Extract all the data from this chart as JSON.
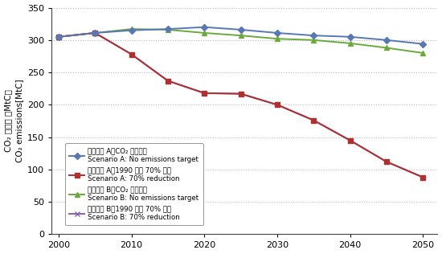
{
  "x": [
    2000,
    2005,
    2010,
    2015,
    2020,
    2025,
    2030,
    2035,
    2040,
    2045,
    2050
  ],
  "scenario_A_no_target": [
    305,
    311,
    315,
    317,
    320,
    316,
    311,
    307,
    305,
    300,
    294
  ],
  "scenario_A_70pct": [
    305,
    311,
    278,
    237,
    218,
    217,
    200,
    176,
    145,
    112,
    88
  ],
  "scenario_B_no_target": [
    305,
    311,
    317,
    316,
    311,
    307,
    302,
    300,
    295,
    288,
    280
  ],
  "scenario_B_70pct": [
    305,
    311,
    278,
    237,
    218,
    217,
    200,
    176,
    145,
    112,
    88
  ],
  "colors": {
    "A_no_target": "#5878b4",
    "A_70pct": "#b03030",
    "B_no_target": "#6aaa3a",
    "B_70pct": "#8860b8"
  },
  "markers": {
    "A_no_target": "D",
    "A_70pct": "s",
    "B_no_target": "^",
    "B_70pct": "x"
  },
  "legend_labels_jp": [
    "シナリオ A：CO₂ 制約なし",
    "シナリオ A：1990 年比 70% 削減",
    "シナリオ B：CO₂ 制約なし",
    "シナリオ B：1990 年比 70% 削減"
  ],
  "legend_labels_en": [
    "Scenario A: No emissions target",
    "Scenario A: 70% reduction",
    "Scenario B: No emissions target",
    "Scenario B: 70% reduction"
  ],
  "ylabel_jp": "CO₂ 排出量 ［MtC］",
  "ylabel_en": "CO₂ emissions[MtC]",
  "xlim": [
    1999,
    2052
  ],
  "ylim": [
    0,
    350
  ],
  "xticks": [
    2000,
    2010,
    2020,
    2030,
    2040,
    2050
  ],
  "yticks": [
    0,
    50,
    100,
    150,
    200,
    250,
    300,
    350
  ],
  "grid_color": "#bbbbbb",
  "background_color": "#ffffff",
  "markersize": 4,
  "linewidth": 1.4
}
